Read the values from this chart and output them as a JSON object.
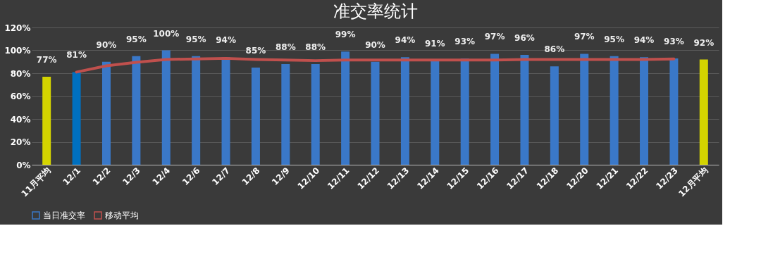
{
  "chart_data": {
    "type": "bar",
    "title": "准交率统计",
    "categories": [
      "11月平均",
      "12/1",
      "12/2",
      "12/3",
      "12/4",
      "12/6",
      "12/7",
      "12/8",
      "12/9",
      "12/10",
      "12/11",
      "12/12",
      "12/13",
      "12/14",
      "12/15",
      "12/16",
      "12/17",
      "12/18",
      "12/20",
      "12/21",
      "12/22",
      "12/23",
      "12月平均"
    ],
    "series": [
      {
        "name": "当日准交率",
        "color": "#3a78c8",
        "colors": [
          "#d4d400",
          "#0070c0",
          "#3a78c8",
          "#3a78c8",
          "#3a78c8",
          "#3a78c8",
          "#3a78c8",
          "#3a78c8",
          "#3a78c8",
          "#3a78c8",
          "#3a78c8",
          "#3a78c8",
          "#3a78c8",
          "#3a78c8",
          "#3a78c8",
          "#3a78c8",
          "#3a78c8",
          "#3a78c8",
          "#3a78c8",
          "#3a78c8",
          "#3a78c8",
          "#3a78c8",
          "#d4d400"
        ],
        "values": [
          77,
          81,
          90,
          95,
          100,
          95,
          94,
          85,
          88,
          88,
          99,
          90,
          94,
          91,
          93,
          97,
          96,
          86,
          97,
          95,
          94,
          93,
          92
        ],
        "value_labels": [
          "77%",
          "81%",
          "90%",
          "95%",
          "100%",
          "95%",
          "94%",
          "85%",
          "88%",
          "88%",
          "99%",
          "90%",
          "94%",
          "91%",
          "93%",
          "97%",
          "96%",
          "86%",
          "97%",
          "95%",
          "94%",
          "93%",
          "92%"
        ]
      },
      {
        "name": "移动平均",
        "type": "line",
        "color": "#c0504d",
        "values": [
          null,
          81,
          86.5,
          89.5,
          92,
          92.5,
          93,
          92,
          91.5,
          91,
          91.5,
          91.5,
          91.5,
          91.5,
          91.5,
          91.5,
          92,
          92,
          92,
          92,
          92,
          92.5,
          null
        ]
      }
    ],
    "ylim": [
      0,
      120
    ],
    "yticks": [
      {
        "value": 0,
        "label": "0%"
      },
      {
        "value": 20,
        "label": "20%"
      },
      {
        "value": 40,
        "label": "40%"
      },
      {
        "value": 60,
        "label": "60%"
      },
      {
        "value": 80,
        "label": "80%"
      },
      {
        "value": 100,
        "label": "100%"
      },
      {
        "value": 120,
        "label": "120%"
      }
    ],
    "grid": "y",
    "legend": "bottom"
  }
}
